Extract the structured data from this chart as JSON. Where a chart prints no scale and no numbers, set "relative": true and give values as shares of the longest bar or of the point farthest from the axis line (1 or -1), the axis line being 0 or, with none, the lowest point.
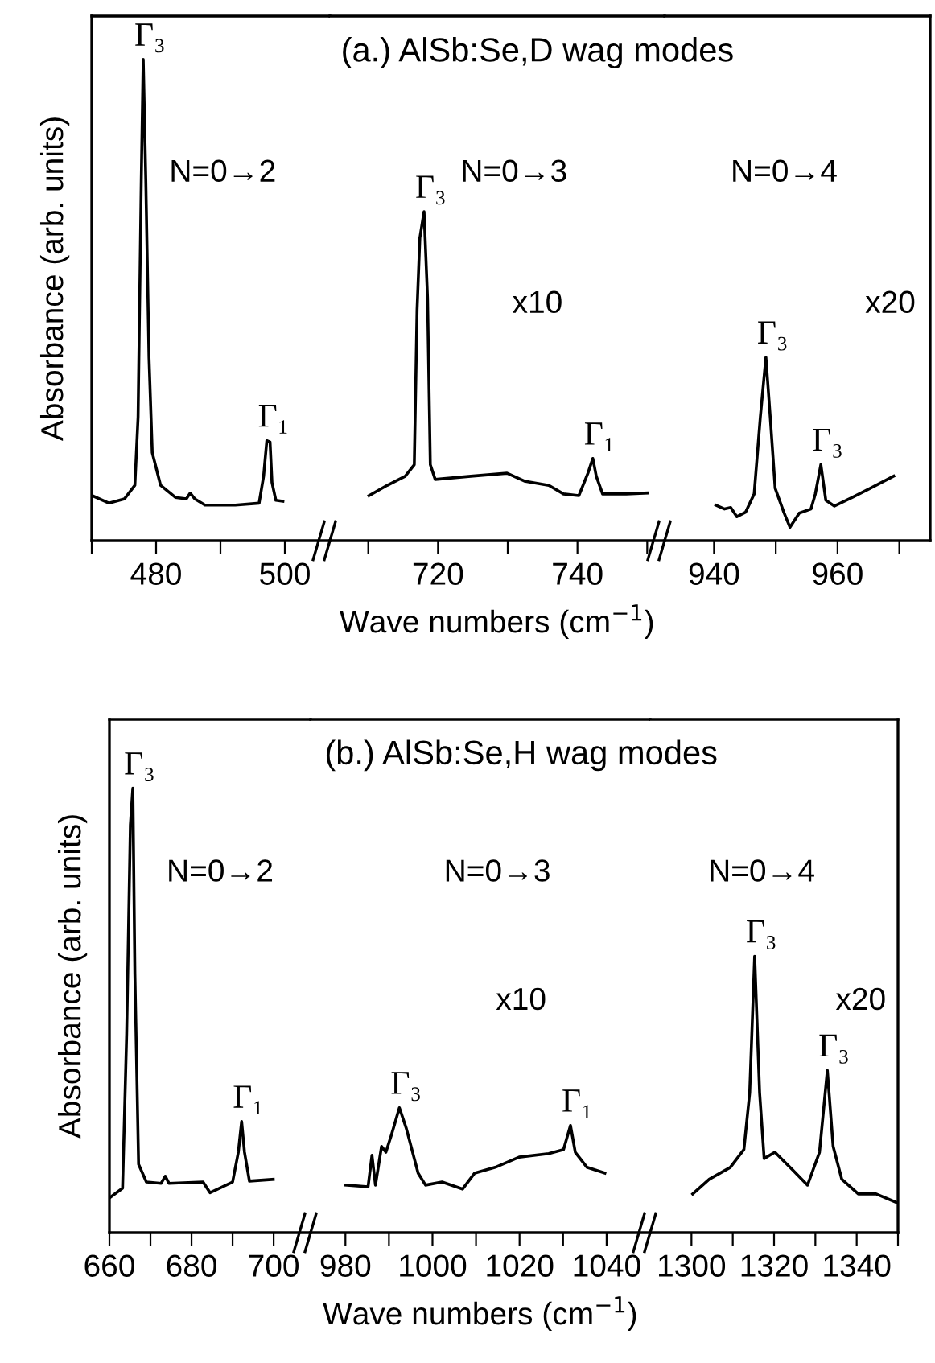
{
  "chart_data": [
    {
      "type": "line",
      "relative": true,
      "ylabel": "Absorbance (arb. units)",
      "xlim": [
        470,
        507
      ],
      "xticks": [
        {
          "value": 470,
          "label": null
        },
        480,
        {
          "value": 490,
          "label": null
        },
        500
      ],
      "series": [
        {
          "color": "#000000",
          "x": [
            470,
            472.7,
            475.1,
            476.7,
            477.2,
            477.7,
            478.0,
            478.4,
            478.9,
            479.4,
            480.7,
            483.0,
            484.7,
            485.3,
            486.0,
            487.6,
            492.3,
            496.0,
            496.7,
            497.2,
            497.7,
            498.0,
            498.6,
            499.7
          ],
          "values": [
            0.094,
            0.078,
            0.087,
            0.115,
            0.257,
            0.75,
            1.0,
            0.75,
            0.38,
            0.183,
            0.115,
            0.09,
            0.087,
            0.099,
            0.087,
            0.074,
            0.074,
            0.078,
            0.134,
            0.208,
            0.205,
            0.121,
            0.084,
            0.082
          ]
        }
      ],
      "annotations": [
        {
          "text": "Γ₃",
          "x": 478.0,
          "y": 1.0
        },
        {
          "text": "Γ₁",
          "x": 497.2,
          "y": 0.208
        },
        "N=0→2"
      ]
    },
    {
      "type": "line",
      "relative": true,
      "title": "(a.) AlSb:Se,D wag modes",
      "xlabel": "Wave numbers (cm$^{−1}$)",
      "xlim": [
        704.5,
        752.5
      ],
      "xticks": [
        {
          "value": 710,
          "label": null
        },
        720,
        {
          "value": 730,
          "label": null
        },
        740,
        {
          "value": 750,
          "label": null
        }
      ],
      "series": [
        {
          "color": "#000000",
          "x": [
            710.1,
            712.7,
            715.3,
            716.6,
            717.0,
            717.4,
            718.0,
            718.5,
            718.9,
            719.6,
            724.7,
            729.9,
            732.4,
            735.9,
            738.0,
            740.2,
            741.5,
            742.2,
            742.7,
            743.6,
            747.0,
            750.0
          ],
          "values": [
            0.137,
            0.168,
            0.196,
            0.231,
            0.702,
            0.92,
            1.0,
            0.738,
            0.231,
            0.186,
            0.196,
            0.205,
            0.181,
            0.168,
            0.142,
            0.137,
            0.205,
            0.25,
            0.196,
            0.142,
            0.142,
            0.145
          ]
        }
      ],
      "annotations": [
        {
          "text": "Γ₃",
          "x": 718.0,
          "y": 1.0
        },
        {
          "text": "Γ₁",
          "x": 742.2,
          "y": 0.25
        },
        "N=0→3",
        "x10"
      ]
    },
    {
      "type": "line",
      "relative": true,
      "xlim": [
        932,
        975
      ],
      "xticks": [
        940,
        {
          "value": 950,
          "label": null
        },
        960,
        {
          "value": 970,
          "label": null
        }
      ],
      "series": [
        {
          "color": "#000000",
          "x": [
            940.3,
            941.7,
            942.7,
            943.7,
            945.1,
            946.5,
            947.5,
            948.4,
            949.1,
            949.9,
            951.3,
            952.3,
            953.8,
            955.7,
            956.4,
            957.3,
            958.1,
            959.5,
            962.4,
            965.3,
            969.1
          ],
          "values": [
            0.194,
            0.173,
            0.181,
            0.131,
            0.155,
            0.255,
            0.675,
            1.0,
            0.675,
            0.286,
            0.155,
            0.073,
            0.15,
            0.173,
            0.255,
            0.415,
            0.22,
            0.189,
            0.236,
            0.286,
            0.352
          ]
        }
      ],
      "annotations": [
        {
          "text": "Γ₃",
          "x": 948.4,
          "y": 1.0
        },
        {
          "text": "Γ₃",
          "x": 957.3,
          "y": 0.415
        },
        "N=0→4",
        "x20"
      ]
    },
    {
      "type": "line",
      "relative": true,
      "ylabel": "Absorbance (arb. units)",
      "xlim": [
        660,
        709
      ],
      "xticks": [
        660,
        {
          "value": 670,
          "label": null
        },
        680,
        {
          "value": 690,
          "label": null
        },
        700
      ],
      "series": [
        {
          "color": "#000000",
          "x": [
            660.3,
            663.2,
            664.2,
            665.1,
            665.7,
            666.2,
            667.1,
            669.0,
            672.6,
            673.6,
            674.5,
            682.8,
            684.5,
            690.0,
            691.4,
            692.2,
            692.9,
            694.1,
            699.9
          ],
          "values": [
            0.08,
            0.1,
            0.448,
            0.917,
            1.0,
            0.582,
            0.154,
            0.114,
            0.111,
            0.127,
            0.111,
            0.114,
            0.09,
            0.114,
            0.181,
            0.25,
            0.181,
            0.116,
            0.12
          ]
        }
      ],
      "annotations": [
        {
          "text": "Γ₃",
          "x": 665.7,
          "y": 1.0
        },
        {
          "text": "Γ₁",
          "x": 692.2,
          "y": 0.25
        },
        "N=0→2"
      ]
    },
    {
      "type": "line",
      "relative": true,
      "title": "(b.) AlSb:Se,H wag modes",
      "xlabel": "Wave numbers (cm$^{−1}$)",
      "xlim": [
        972,
        1050
      ],
      "xticks": [
        980,
        {
          "value": 990,
          "label": null
        },
        1000,
        {
          "value": 1010,
          "label": null
        },
        1020,
        {
          "value": 1030,
          "label": null
        },
        1040
      ],
      "series": [
        {
          "color": "#000000",
          "x": [
            980.1,
            985.2,
            986.1,
            986.9,
            988.3,
            989.3,
            990.6,
            992.4,
            994.0,
            996.7,
            998.4,
            1002.2,
            1006.9,
            1009.7,
            1014.4,
            1019.9,
            1026.7,
            1030.1,
            1031.7,
            1032.8,
            1035.5,
            1039.6
          ],
          "values": [
            0.381,
            0.367,
            0.619,
            0.381,
            0.69,
            0.644,
            0.786,
            1.0,
            0.833,
            0.477,
            0.381,
            0.406,
            0.349,
            0.477,
            0.523,
            0.605,
            0.633,
            0.665,
            0.858,
            0.644,
            0.523,
            0.477
          ]
        }
      ],
      "annotations": [
        {
          "text": "Γ₃",
          "x": 992.4,
          "y": 1.0
        },
        {
          "text": "Γ₁",
          "x": 1031.7,
          "y": 0.858
        },
        "N=0→3",
        "x10"
      ]
    },
    {
      "type": "line",
      "relative": true,
      "xlim": [
        1290,
        1350
      ],
      "xticks": [
        1300,
        {
          "value": 1310,
          "label": null
        },
        1320,
        {
          "value": 1330,
          "label": null
        },
        1340,
        {
          "value": 1350,
          "label": null
        }
      ],
      "series": [
        {
          "color": "#000000",
          "x": [
            1300.3,
            1304.3,
            1309.4,
            1312.7,
            1314.1,
            1315.3,
            1316.5,
            1317.6,
            1320.2,
            1324.5,
            1328.1,
            1331.0,
            1332.9,
            1334.3,
            1336.4,
            1340.4,
            1344.7,
            1349.8
          ],
          "values": [
            0.14,
            0.193,
            0.236,
            0.301,
            0.506,
            1.0,
            0.506,
            0.268,
            0.291,
            0.227,
            0.172,
            0.291,
            0.587,
            0.312,
            0.193,
            0.14,
            0.14,
            0.108
          ]
        }
      ],
      "annotations": [
        {
          "text": "Γ₃",
          "x": 1315.3,
          "y": 1.0
        },
        {
          "text": "Γ₃",
          "x": 1332.9,
          "y": 0.587
        },
        "N=0→4",
        "x20"
      ]
    }
  ]
}
